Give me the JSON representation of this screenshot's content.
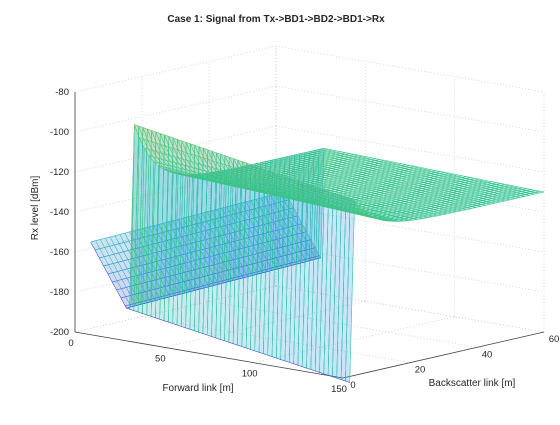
{
  "chart_data": {
    "type": "surface",
    "title": "Case 1: Signal from Tx->BD1->BD2->BD1->Rx",
    "xlabel": "Forward link [m]",
    "ylabel": "Backscatter link [m]",
    "zlabel": "Rx level [dBm]",
    "xlim": [
      0,
      150
    ],
    "ylim": [
      0,
      60
    ],
    "zlim": [
      -200,
      -80
    ],
    "xticks": [
      "0",
      "50",
      "100",
      "150"
    ],
    "yticks": [
      "0",
      "20",
      "40",
      "60"
    ],
    "zticks": [
      "-80",
      "-100",
      "-120",
      "-140",
      "-160",
      "-180",
      "-200"
    ],
    "grid": true,
    "colormap": "parula",
    "colormap_colors": [
      "#3e26a8",
      "#4a48e6",
      "#2f7bf6",
      "#1fa7dc",
      "#1dbfa6",
      "#6ccd5c",
      "#c8c12a",
      "#f9dd26"
    ],
    "surface": {
      "x_range": [
        5,
        150
      ],
      "y_range": [
        2,
        60
      ],
      "step_at_x": 25,
      "corner_values": {
        "x5_y2": -155,
        "x25_y2": -185,
        "x150_y2": -203,
        "x25_y60": -127,
        "x25_y0_peak": -84,
        "x150_y60": -130
      }
    }
  }
}
